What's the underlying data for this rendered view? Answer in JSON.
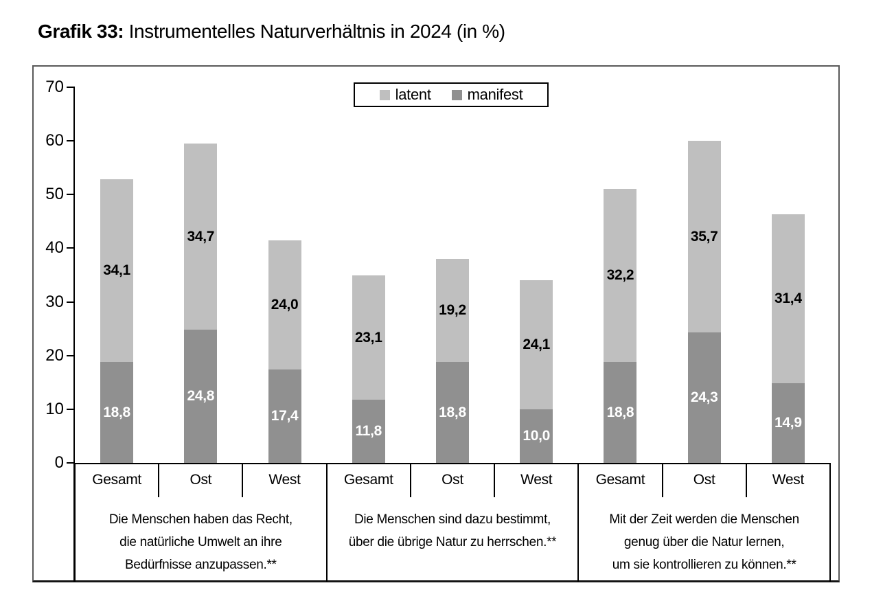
{
  "page": {
    "title_prefix": "Grafik 33:",
    "title_rest": " Instrumentelles Naturverhältnis in 2024 (in %)"
  },
  "legend": {
    "items": [
      {
        "key": "latent",
        "label": "latent",
        "color": "#bfbfbf"
      },
      {
        "key": "manifest",
        "label": "manifest",
        "color": "#909090"
      }
    ]
  },
  "chart_data": {
    "type": "bar",
    "stacked": true,
    "title": "Grafik 33: Instrumentelles Naturverhältnis in 2024 (in %)",
    "value_unit": "%",
    "ylim": [
      0,
      70
    ],
    "y_ticks": [
      0,
      10,
      20,
      30,
      40,
      50,
      60,
      70
    ],
    "grid": false,
    "legend_position": "top-center",
    "series_order_bottom_to_top": [
      "manifest",
      "latent"
    ],
    "series_colors": {
      "manifest": "#909090",
      "latent": "#bfbfbf"
    },
    "groups": [
      {
        "statement_lines": [
          "Die Menschen haben das Recht,",
          "die natürliche Umwelt an ihre",
          "Bedürfnisse anzupassen.**"
        ],
        "bars": [
          {
            "category": "Gesamt",
            "manifest": 18.8,
            "latent": 34.1,
            "labels": {
              "manifest": "18,8",
              "latent": "34,1"
            }
          },
          {
            "category": "Ost",
            "manifest": 24.8,
            "latent": 34.7,
            "labels": {
              "manifest": "24,8",
              "latent": "34,7"
            }
          },
          {
            "category": "West",
            "manifest": 17.4,
            "latent": 24.0,
            "labels": {
              "manifest": "17,4",
              "latent": "24,0"
            }
          }
        ]
      },
      {
        "statement_lines": [
          "Die Menschen sind dazu bestimmt,",
          "über die übrige Natur zu herrschen.**"
        ],
        "bars": [
          {
            "category": "Gesamt",
            "manifest": 11.8,
            "latent": 23.1,
            "labels": {
              "manifest": "11,8",
              "latent": "23,1"
            }
          },
          {
            "category": "Ost",
            "manifest": 18.8,
            "latent": 19.2,
            "labels": {
              "manifest": "18,8",
              "latent": "19,2"
            }
          },
          {
            "category": "West",
            "manifest": 10.0,
            "latent": 24.1,
            "labels": {
              "manifest": "10,0",
              "latent": "24,1"
            }
          }
        ]
      },
      {
        "statement_lines": [
          "Mit der Zeit werden die Menschen",
          "genug über die Natur lernen,",
          "um sie kontrollieren zu können.**"
        ],
        "bars": [
          {
            "category": "Gesamt",
            "manifest": 18.8,
            "latent": 32.2,
            "labels": {
              "manifest": "18,8",
              "latent": "32,2"
            }
          },
          {
            "category": "Ost",
            "manifest": 24.3,
            "latent": 35.7,
            "labels": {
              "manifest": "24,3",
              "latent": "35,7"
            }
          },
          {
            "category": "West",
            "manifest": 14.9,
            "latent": 31.4,
            "labels": {
              "manifest": "14,9",
              "latent": "31,4"
            }
          }
        ]
      }
    ]
  }
}
